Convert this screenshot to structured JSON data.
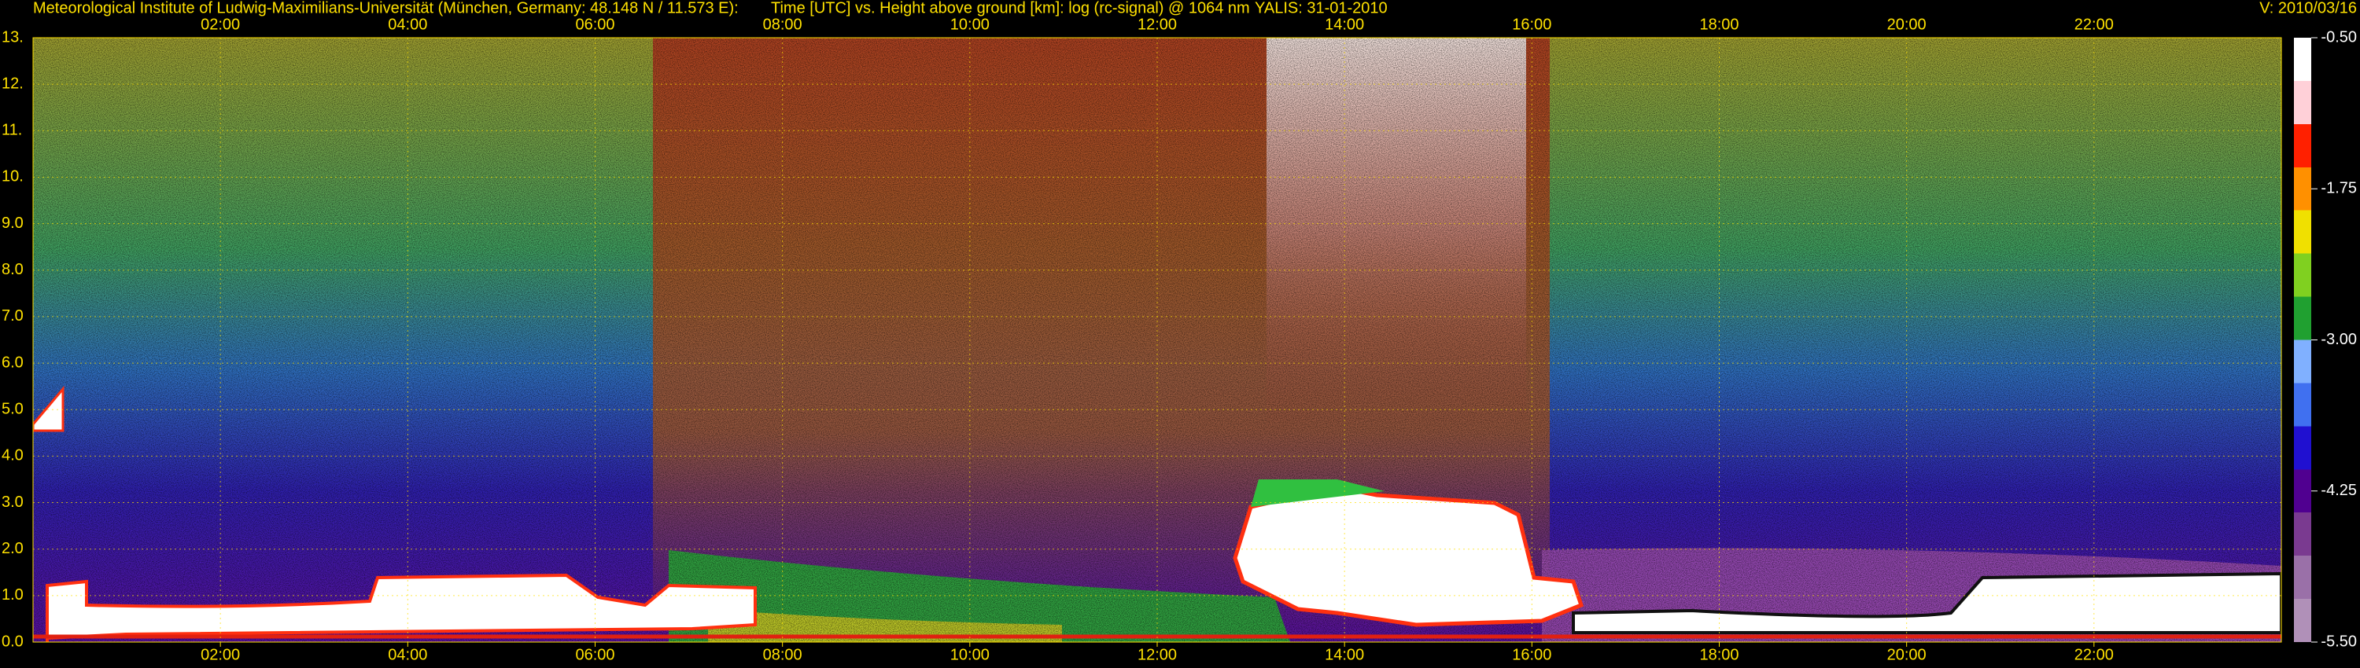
{
  "chart_data": {
    "type": "heatmap",
    "title": "Meteorological Institute of Ludwig-Maximilians-Universität (München, Germany: 48.148 N / 11.573 E):",
    "subtitle": "Time [UTC] vs. Height above ground [km]: log (rc-signal) @ 1064 nm",
    "station": "YALIS: 31-01-2010",
    "version": "V: 2010/03/16",
    "xlim": [
      0,
      24
    ],
    "xticks": [
      {
        "value": 2,
        "label": "02:00"
      },
      {
        "value": 4,
        "label": "04:00"
      },
      {
        "value": 6,
        "label": "06:00"
      },
      {
        "value": 8,
        "label": "08:00"
      },
      {
        "value": 10,
        "label": "10:00"
      },
      {
        "value": 12,
        "label": "12:00"
      },
      {
        "value": 14,
        "label": "14:00"
      },
      {
        "value": 16,
        "label": "16:00"
      },
      {
        "value": 18,
        "label": "18:00"
      },
      {
        "value": 20,
        "label": "20:00"
      },
      {
        "value": 22,
        "label": "22:00"
      }
    ],
    "ylim": [
      0,
      13
    ],
    "yticks": [
      {
        "value": 0,
        "label": "0.0"
      },
      {
        "value": 1,
        "label": "1.0"
      },
      {
        "value": 2,
        "label": "2.0"
      },
      {
        "value": 3,
        "label": "3.0"
      },
      {
        "value": 4,
        "label": "4.0"
      },
      {
        "value": 5,
        "label": "5.0"
      },
      {
        "value": 6,
        "label": "6.0"
      },
      {
        "value": 7,
        "label": "7.0"
      },
      {
        "value": 8,
        "label": "8.0"
      },
      {
        "value": 9,
        "label": "9.0"
      },
      {
        "value": 10,
        "label": "10."
      },
      {
        "value": 11,
        "label": "11."
      },
      {
        "value": 12,
        "label": "12."
      },
      {
        "value": 13,
        "label": "13."
      }
    ],
    "grid": true,
    "colorbar": {
      "lim": [
        -5.5,
        -0.5
      ],
      "ticks": [
        {
          "value": -0.5,
          "label": "-0.50"
        },
        {
          "value": -1.75,
          "label": "-1.75"
        },
        {
          "value": -3,
          "label": "-3.00"
        },
        {
          "value": -4.25,
          "label": "-4.25"
        },
        {
          "value": -5.5,
          "label": "-5.50"
        }
      ],
      "colors": [
        "#b090b8",
        "#9a70a8",
        "#7a3a90",
        "#500090",
        "#2010d0",
        "#4070f0",
        "#80b0ff",
        "#20a030",
        "#80d020",
        "#f0e000",
        "#ff9000",
        "#ff2000",
        "#ffd0d8",
        "#ffffff"
      ]
    }
  }
}
